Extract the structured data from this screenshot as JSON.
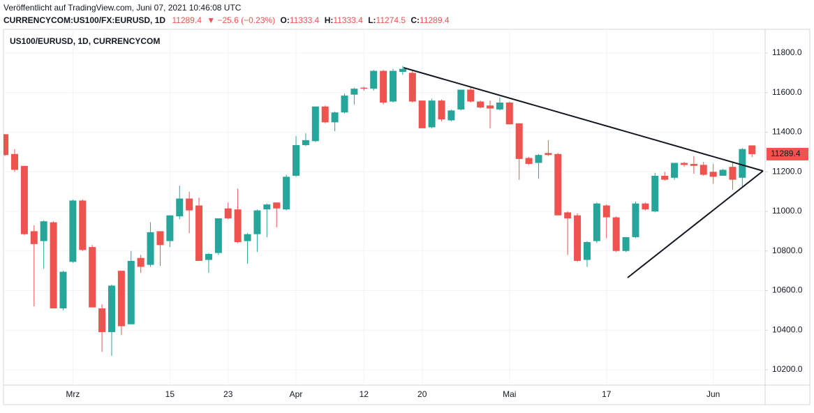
{
  "header": {
    "published": "Veröffentlicht auf TradingView.com, Juni 07, 2021 10:46:08 UTC",
    "symbol": "CURRENCYCOM:US100/FX:EURUSD, 1D",
    "price": "11289.4",
    "change": "▼ −25.6 (−0.23%)",
    "ohlc": [
      {
        "label": "O:",
        "value": "11333.4"
      },
      {
        "label": "H:",
        "value": "11333.4"
      },
      {
        "label": "L:",
        "value": "11274.5"
      },
      {
        "label": "C:",
        "value": "11289.4"
      }
    ]
  },
  "chart_data": {
    "type": "candlestick",
    "title": "US100/EURUSD, 1D, CURRENCYCOM",
    "up_color": "#26a69a",
    "down_color": "#ef5350",
    "open": [
      11390,
      11290,
      11230,
      10900,
      10850,
      10945,
      10510,
      10745,
      11055,
      10820,
      10510,
      10390,
      10700,
      10430,
      10765,
      10730,
      10900,
      10850,
      10975,
      11065,
      11030,
      10755,
      10790,
      11015,
      11010,
      10850,
      10885,
      11010,
      11045,
      11010,
      11180,
      11335,
      11355,
      11530,
      11450,
      11500,
      11590,
      11625,
      11620,
      11710,
      11555,
      11705,
      11700,
      11560,
      11425,
      11560,
      11460,
      11515,
      11615,
      11555,
      11535,
      11515,
      11550,
      11445,
      11270,
      11245,
      11295,
      11290,
      10995,
      10980,
      10755,
      10850,
      11030,
      10970,
      10800,
      10870,
      11040,
      11000,
      11180,
      11170,
      11245,
      11240,
      11235,
      11200,
      11180,
      11225,
      11170,
      11333.4
    ],
    "high": [
      11390,
      11315,
      11230,
      10930,
      10955,
      10950,
      10700,
      11060,
      11060,
      10830,
      10530,
      10630,
      10700,
      10800,
      10780,
      10945,
      10900,
      10980,
      11130,
      11100,
      11070,
      10790,
      10965,
      11045,
      11115,
      10890,
      11010,
      11040,
      11045,
      11185,
      11380,
      11395,
      11530,
      11535,
      11505,
      11595,
      11625,
      11630,
      11715,
      11715,
      11720,
      11735,
      11710,
      11560,
      11570,
      11565,
      11515,
      11615,
      11630,
      11560,
      11560,
      11575,
      11555,
      11445,
      11275,
      11290,
      11360,
      11295,
      11000,
      10990,
      10850,
      11045,
      11035,
      10975,
      10870,
      11050,
      11045,
      11195,
      11200,
      11245,
      11250,
      11280,
      11250,
      11240,
      11215,
      11250,
      11320,
      11333.4
    ],
    "low": [
      11280,
      11200,
      10880,
      10520,
      10710,
      10510,
      10500,
      10740,
      10800,
      10515,
      10290,
      10270,
      10375,
      10430,
      10690,
      10720,
      10725,
      10820,
      10960,
      10890,
      10750,
      10690,
      10780,
      10960,
      10840,
      10735,
      10795,
      10870,
      10920,
      11005,
      11175,
      11330,
      11350,
      11445,
      11405,
      11495,
      11540,
      11610,
      11610,
      11540,
      11550,
      11690,
      11550,
      11420,
      11420,
      11455,
      11455,
      11510,
      11550,
      11520,
      11420,
      11510,
      11440,
      11160,
      11235,
      11165,
      11280,
      10980,
      10780,
      10745,
      10720,
      10840,
      10865,
      10795,
      10795,
      10865,
      11005,
      10995,
      11155,
      11160,
      11225,
      11190,
      11180,
      11140,
      11190,
      11110,
      11120,
      11274.5
    ],
    "close": [
      11285,
      11210,
      10885,
      10835,
      10950,
      10510,
      10695,
      11055,
      10805,
      10515,
      10390,
      10625,
      10420,
      10750,
      10720,
      10895,
      10830,
      10980,
      11065,
      11005,
      10750,
      10785,
      10965,
      10965,
      10845,
      10885,
      11005,
      11035,
      11015,
      11175,
      11335,
      11360,
      11530,
      11450,
      11500,
      11585,
      11620,
      11620,
      11710,
      11550,
      11710,
      11720,
      11555,
      11420,
      11560,
      11465,
      11510,
      11615,
      11555,
      11525,
      11520,
      11550,
      11440,
      11265,
      11240,
      11285,
      11285,
      10980,
      10965,
      10750,
      10845,
      11040,
      10970,
      10800,
      10870,
      11040,
      11010,
      11180,
      11160,
      11245,
      11235,
      11230,
      11185,
      11175,
      11210,
      11160,
      11315,
      11289.4
    ],
    "last_price_label": "11289.4",
    "xlim": [
      -0.15,
      78.35
    ],
    "xticks": [
      {
        "value": 7,
        "label": "Mrz"
      },
      {
        "value": 17,
        "label": "15"
      },
      {
        "value": 23,
        "label": "23"
      },
      {
        "value": 30,
        "label": "Apr"
      },
      {
        "value": 37,
        "label": "12"
      },
      {
        "value": 43,
        "label": "20"
      },
      {
        "value": 52,
        "label": "Mai"
      },
      {
        "value": 62,
        "label": "17"
      },
      {
        "value": 73,
        "label": "Jun"
      }
    ],
    "ylim": [
      10122.5,
      11920
    ],
    "yticks": [
      {
        "value": 10200,
        "label": "10200.0"
      },
      {
        "value": 10400,
        "label": "10400.0"
      },
      {
        "value": 10600,
        "label": "10600.0"
      },
      {
        "value": 10800,
        "label": "10800.0"
      },
      {
        "value": 11000,
        "label": "11000.0"
      },
      {
        "value": 11200,
        "label": "11200.0"
      },
      {
        "value": 11400,
        "label": "11400.0"
      },
      {
        "value": 11600,
        "label": "11600.0"
      },
      {
        "value": 11800,
        "label": "11800.0"
      }
    ],
    "grid": true
  }
}
